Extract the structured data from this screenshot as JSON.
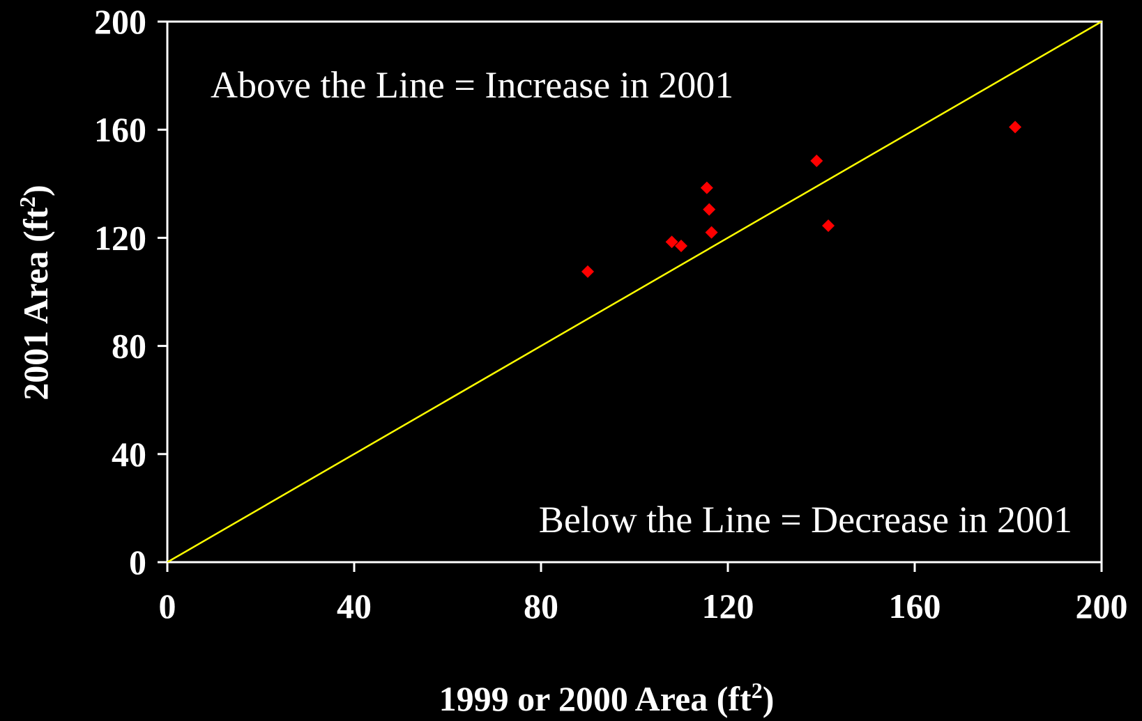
{
  "chart_data": {
    "type": "scatter",
    "title": "",
    "xlabel": "1999 or 2000 Area (ft",
    "xlabel_sup": "2",
    "xlabel_end": ")",
    "ylabel": "2001 Area (ft",
    "ylabel_sup": "2",
    "ylabel_end": ")",
    "xlim": [
      0,
      200
    ],
    "ylim": [
      0,
      200
    ],
    "x_ticks": [
      "0",
      "40",
      "80",
      "120",
      "160",
      "200"
    ],
    "y_ticks": [
      "0",
      "40",
      "80",
      "120",
      "160",
      "200"
    ],
    "grid": false,
    "legend": "none",
    "annotations": {
      "above": "Above the Line = Increase in 2001",
      "below": "Below the Line = Decrease in 2001"
    },
    "reference_line": {
      "from": [
        0,
        0
      ],
      "to": [
        200,
        200
      ],
      "color": "#ffff00"
    },
    "colors": {
      "background": "#000000",
      "axes": "#ffffff",
      "points": "#ff0000",
      "reference_line": "#ffff00"
    },
    "series": [
      {
        "points": [
          [
            90,
            107.5
          ],
          [
            108,
            118.5
          ],
          [
            110,
            117
          ],
          [
            115.5,
            138.5
          ],
          [
            116,
            130.5
          ],
          [
            116.5,
            122
          ],
          [
            139,
            148.5
          ],
          [
            141.5,
            124.5
          ],
          [
            181.5,
            161
          ]
        ]
      }
    ]
  }
}
